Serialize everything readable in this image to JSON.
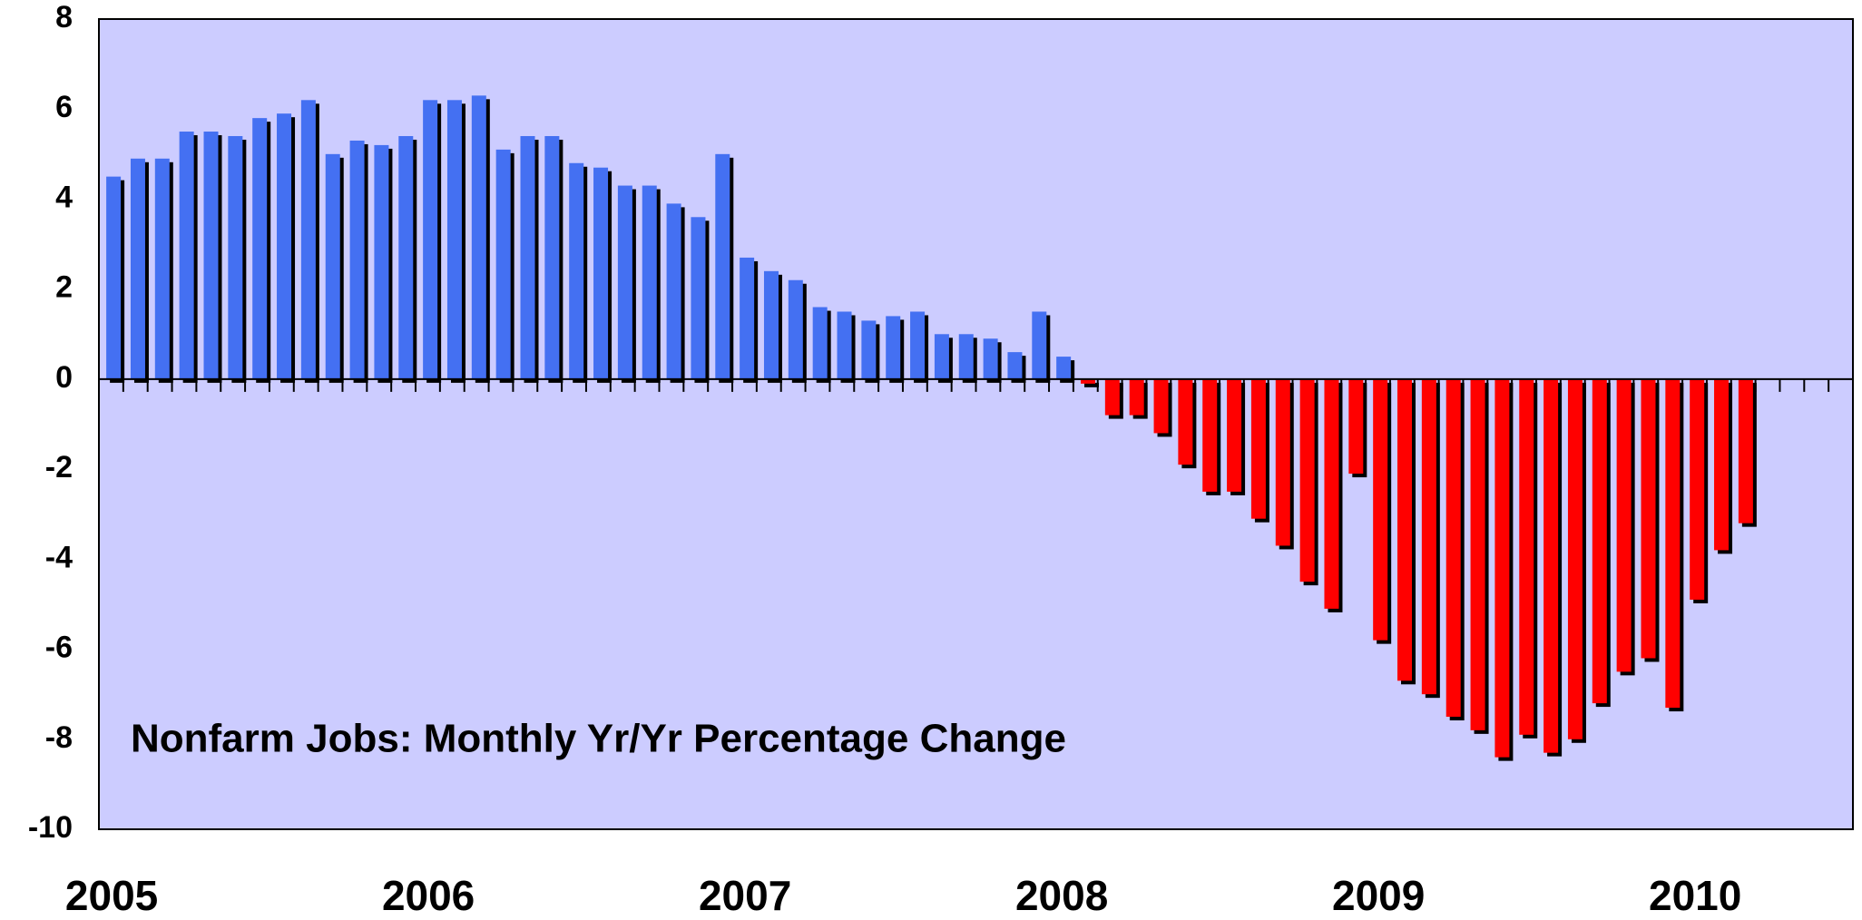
{
  "chart_data": {
    "type": "bar",
    "title": "Nonfarm Jobs: Monthly Yr/Yr Percentage Change",
    "categories": [
      "2005",
      null,
      null,
      null,
      null,
      null,
      null,
      null,
      null,
      null,
      null,
      null,
      null,
      "2006",
      null,
      null,
      null,
      null,
      null,
      null,
      null,
      null,
      null,
      null,
      null,
      null,
      "2007",
      null,
      null,
      null,
      null,
      null,
      null,
      null,
      null,
      null,
      null,
      null,
      null,
      "2008",
      null,
      null,
      null,
      null,
      null,
      null,
      null,
      null,
      null,
      null,
      null,
      null,
      "2009",
      null,
      null,
      null,
      null,
      null,
      null,
      null,
      null,
      null,
      null,
      null,
      null,
      "2010",
      null,
      null,
      null,
      null,
      null
    ],
    "values": [
      4.5,
      4.9,
      4.9,
      5.5,
      5.5,
      5.4,
      5.8,
      5.9,
      6.2,
      5.0,
      5.3,
      5.2,
      5.4,
      6.2,
      6.2,
      6.3,
      5.1,
      5.4,
      5.4,
      4.8,
      4.7,
      4.3,
      4.3,
      3.9,
      3.6,
      5.0,
      2.7,
      2.4,
      2.2,
      1.6,
      1.5,
      1.3,
      1.4,
      1.5,
      1.0,
      1.0,
      0.9,
      0.6,
      1.5,
      0.5,
      -0.1,
      -0.8,
      -0.8,
      -1.2,
      -1.9,
      -2.5,
      -2.5,
      -3.1,
      -3.7,
      -4.5,
      -5.1,
      -2.1,
      -5.8,
      -6.7,
      -7.0,
      -7.5,
      -7.8,
      -8.4,
      -7.9,
      -8.3,
      -8.0,
      -7.2,
      -6.5,
      -6.2,
      -7.3,
      -4.9,
      -3.8,
      -3.2,
      null,
      null,
      null
    ],
    "positive_color": "#4470f2",
    "negative_color": "#ff0000",
    "background": "#ccccff",
    "ylim": [
      -10,
      8
    ],
    "yticks": [
      -10,
      -8,
      -6,
      -4,
      -2,
      0,
      2,
      4,
      6,
      8
    ],
    "grid": false
  }
}
